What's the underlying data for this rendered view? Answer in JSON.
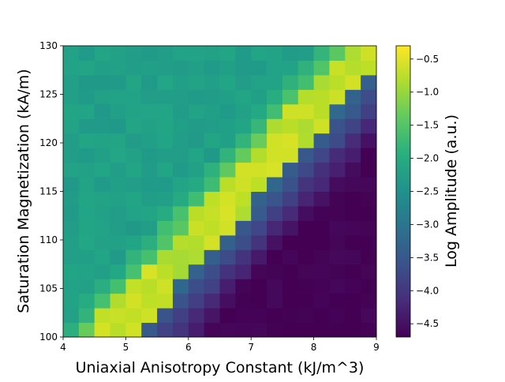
{
  "chart_data": {
    "type": "heatmap",
    "title": "",
    "xlabel": "Uniaxial Anisotropy Constant (kJ/m^3)",
    "ylabel": "Saturation Magnetization (kA/m)",
    "colorbar_label": "Log Amplitude (a.u.)",
    "colormap": "viridis",
    "xlim": [
      4,
      9
    ],
    "ylim": [
      100,
      130
    ],
    "clim": [
      -4.7,
      -0.3
    ],
    "x_ticks": [
      "4",
      "5",
      "6",
      "7",
      "8",
      "9"
    ],
    "y_ticks": [
      "100",
      "105",
      "110",
      "115",
      "120",
      "125",
      "130"
    ],
    "colorbar_ticks": [
      "-0.5",
      "-1.0",
      "-1.5",
      "-2.0",
      "-2.5",
      "-3.0",
      "-3.5",
      "-4.0",
      "-4.5"
    ],
    "grid": false,
    "n_cols": 20,
    "n_rows": 20,
    "cell_width_x": 0.25,
    "cell_height_y": 1.5,
    "description": "Ridge of high log amplitude (about -0.5) running diagonally from lower-left (x~4.5, y~100) to upper-right (x~9, y~130); region above-left of the ridge is about -2.3, region below-right decays to about -4.6."
  }
}
